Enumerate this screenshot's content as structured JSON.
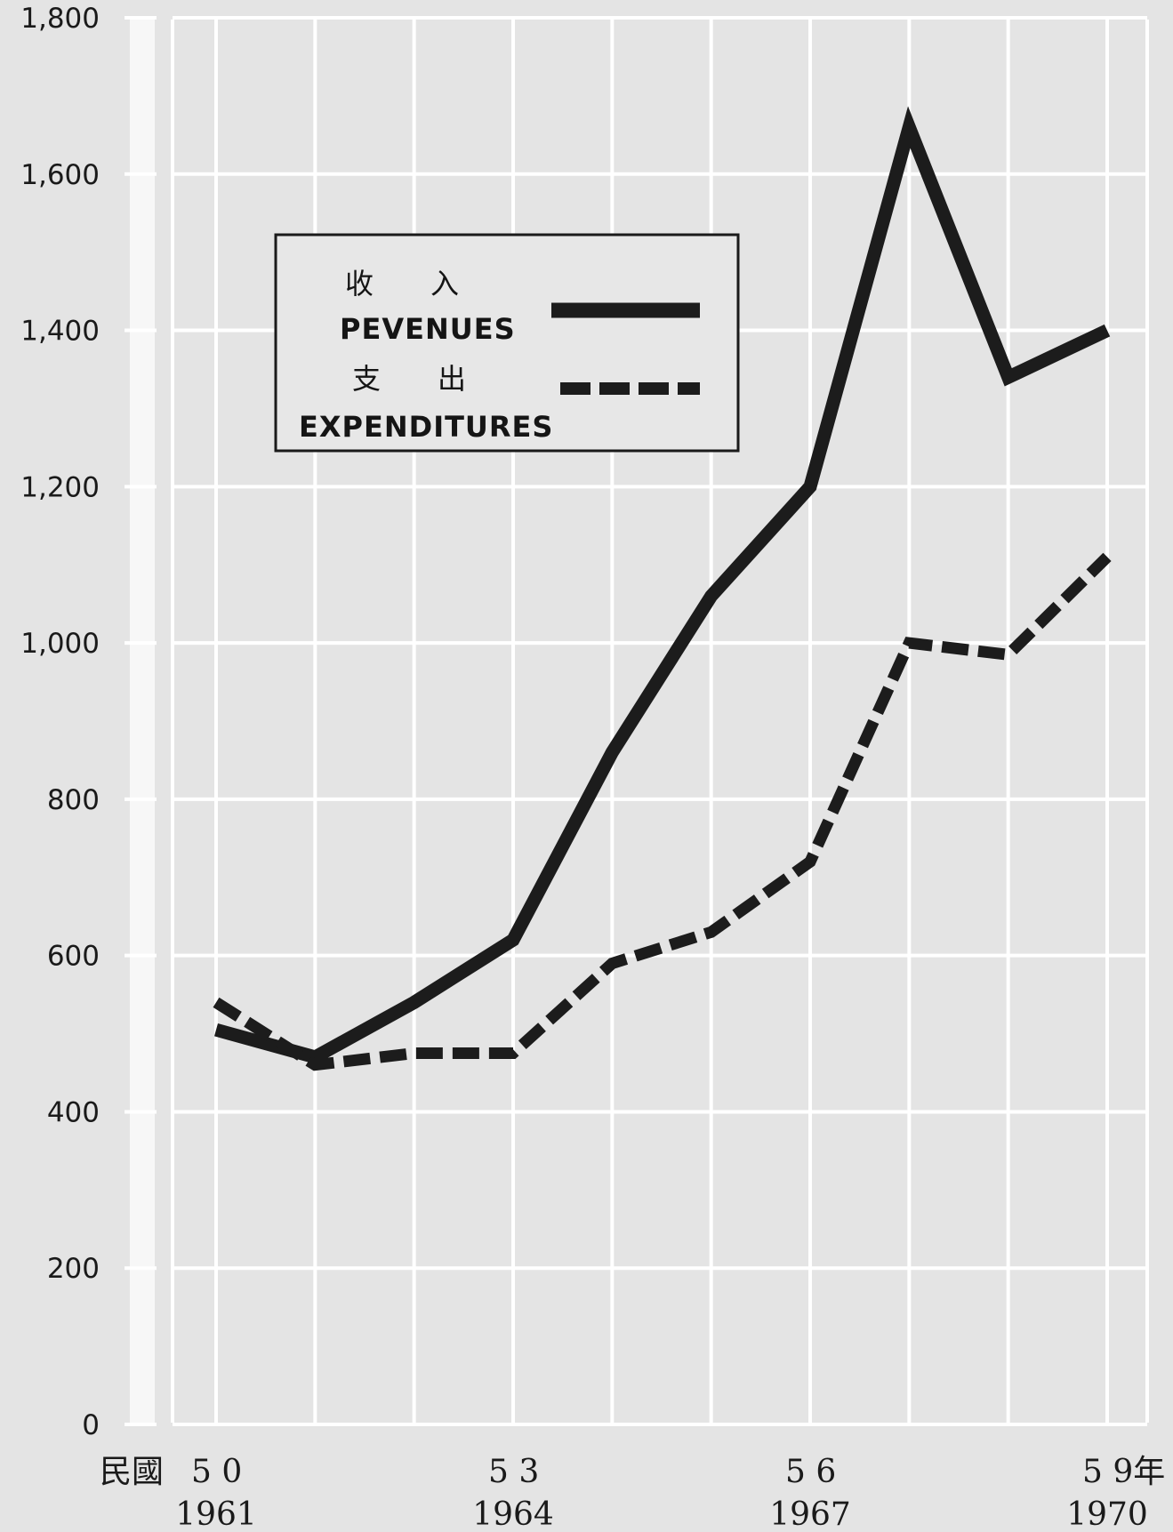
{
  "chart_data": {
    "type": "line",
    "title": "",
    "xlabel": "",
    "ylabel": "",
    "ylim": [
      0,
      1800
    ],
    "yticks": [
      "0",
      "200",
      "400",
      "600",
      "800",
      "1,000",
      "1,200",
      "1,400",
      "1,600",
      "1,800"
    ],
    "y_tick_values": [
      0,
      200,
      400,
      600,
      800,
      1000,
      1200,
      1400,
      1600,
      1800
    ],
    "x": [
      1961,
      1962,
      1963,
      1964,
      1965,
      1966,
      1967,
      1968,
      1969,
      1970
    ],
    "x_prefix": "民國",
    "x_tick_labels": [
      {
        "x": 1961,
        "roc": "5 0",
        "year": "1961"
      },
      {
        "x": 1964,
        "roc": "5 3",
        "year": "1964"
      },
      {
        "x": 1967,
        "roc": "5 6",
        "year": "1967"
      },
      {
        "x": 1970,
        "roc": "5 9年",
        "year": "1970"
      }
    ],
    "grid": true,
    "legend_position": "top-left",
    "series": [
      {
        "name": "PEVENUES",
        "name_zh": "收　　入",
        "style": "solid",
        "color": "#1c1c1c",
        "values": [
          505,
          470,
          540,
          620,
          860,
          1060,
          1200,
          1660,
          1340,
          1400
        ]
      },
      {
        "name": "EXPENDITURES",
        "name_zh": "支　　出",
        "style": "dashed",
        "color": "#1c1c1c",
        "values": [
          540,
          460,
          475,
          475,
          590,
          630,
          720,
          1000,
          985,
          1110
        ]
      }
    ]
  }
}
